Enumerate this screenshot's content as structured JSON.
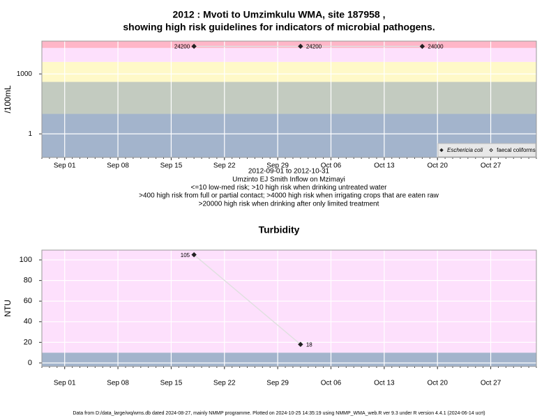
{
  "chart_data": [
    {
      "type": "line",
      "title": [
        "2012 : Mvoti to Umzimkulu WMA, site 187958 ,",
        "showing high risk guidelines for indicators of microbial pathogens."
      ],
      "subtitle": [
        "2012-09-01 to 2012-10-31",
        "Umzinto EJ Smith Inflow on Mzimayi",
        "<=10 low-med risk; >10 high risk when drinking untreated water",
        ">400 high risk from full or partial contact; >4000 high risk when irrigating crops that are eaten raw",
        ">20000 high risk when drinking after only limited treatment"
      ],
      "ylabel": "/100mL",
      "log_scale": true,
      "xlim": [
        "2012-08-29",
        "2012-11-02"
      ],
      "xticks": [
        {
          "value": "2012-09-01",
          "label": "Sep 01"
        },
        {
          "value": "2012-09-08",
          "label": "Sep 08"
        },
        {
          "value": "2012-09-15",
          "label": "Sep 15"
        },
        {
          "value": "2012-09-22",
          "label": "Sep 22"
        },
        {
          "value": "2012-09-29",
          "label": "Sep 29"
        },
        {
          "value": "2012-10-06",
          "label": "Oct 06"
        },
        {
          "value": "2012-10-13",
          "label": "Oct 13"
        },
        {
          "value": "2012-10-20",
          "label": "Oct 20"
        },
        {
          "value": "2012-10-27",
          "label": "Oct 27"
        }
      ],
      "ylim": [
        0.066,
        44000
      ],
      "yticks": [
        1,
        1000
      ],
      "grid": true,
      "bands": {
        "thresholds": [
          10,
          400,
          4000,
          20000
        ],
        "colors": [
          "#a3b4cc",
          "#c3cbc0",
          "#fff9c8",
          "#fde0fc",
          "#ffb6c8"
        ]
      },
      "legend": "lower right",
      "series": [
        {
          "name": "Eschericia coli",
          "color": "#222222",
          "filled": true,
          "x": [
            "2012-09-18",
            "2012-10-02",
            "2012-10-18"
          ],
          "values": [
            24200,
            24200,
            24000
          ]
        },
        {
          "name": "faecal coliforms",
          "color": "#222222",
          "filled": false,
          "x": [
            "2012-09-18",
            "2012-10-02",
            "2012-10-18"
          ],
          "values": [
            null,
            null,
            null
          ]
        }
      ]
    },
    {
      "type": "line",
      "title": [
        "Turbidity"
      ],
      "ylabel": "NTU",
      "log_scale": false,
      "xlim": [
        "2012-08-29",
        "2012-11-02"
      ],
      "xticks": [
        {
          "value": "2012-09-01",
          "label": "Sep 01"
        },
        {
          "value": "2012-09-08",
          "label": "Sep 08"
        },
        {
          "value": "2012-09-15",
          "label": "Sep 15"
        },
        {
          "value": "2012-09-22",
          "label": "Sep 22"
        },
        {
          "value": "2012-09-29",
          "label": "Sep 29"
        },
        {
          "value": "2012-10-06",
          "label": "Oct 06"
        },
        {
          "value": "2012-10-13",
          "label": "Oct 13"
        },
        {
          "value": "2012-10-20",
          "label": "Oct 20"
        },
        {
          "value": "2012-10-27",
          "label": "Oct 27"
        }
      ],
      "ylim": [
        -3.4,
        109.5
      ],
      "yticks": [
        0,
        20,
        40,
        60,
        80,
        100
      ],
      "grid": true,
      "bands": {
        "thresholds": [
          10
        ],
        "colors": [
          "#a3b4cc",
          "#fde0fc"
        ]
      },
      "series": [
        {
          "name": "Turbidity",
          "color": "#222222",
          "filled": true,
          "x": [
            "2012-09-18",
            "2012-10-02"
          ],
          "values": [
            105,
            18
          ]
        }
      ]
    }
  ],
  "footer": "Data from D:/data_large/wq/wms.db dated 2024-08-27, mainly NMMP programme. Plotted on 2024-10-25 14:35:19 using NMMP_WMA_web.R ver 9.3 under R version 4.4.1 (2024-06-14 ucrt)"
}
